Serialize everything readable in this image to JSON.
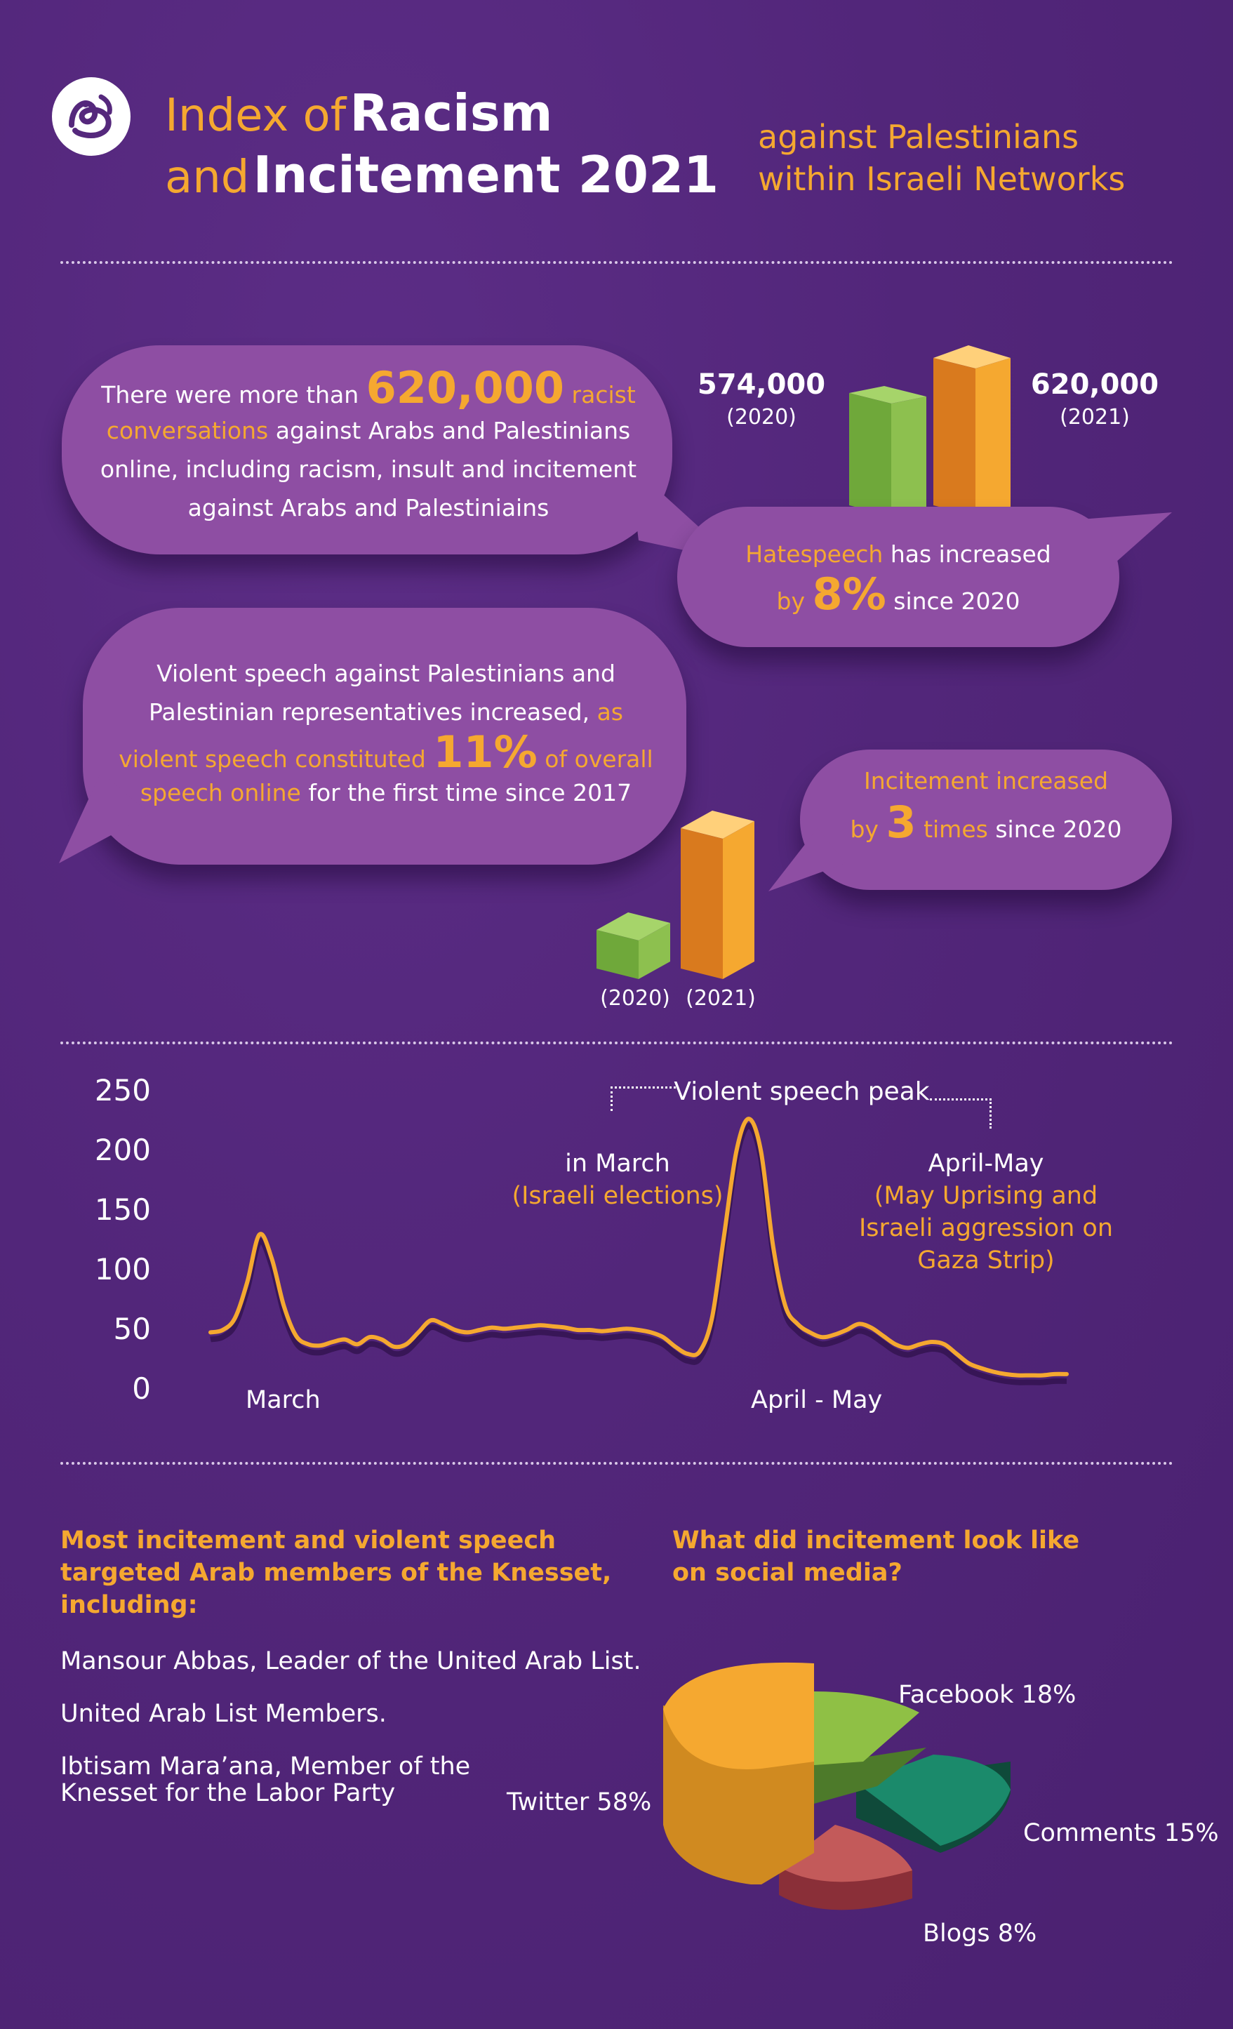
{
  "header": {
    "title_line1_a": "Index of",
    "title_line1_b": "Racism",
    "title_line2_a": "and",
    "title_line2_b": "Incitement 2021",
    "subtitle_line1": "against Palestinians",
    "subtitle_line2": "within Israeli Networks"
  },
  "bubble1": {
    "t1": "There were more than",
    "num": "620,000",
    "t2": "racist",
    "t3": "conversations",
    "t4": "against Arabs and Palestinians",
    "t5": "online, including racism, insult and incitement",
    "t6": "against Arabs and Palestiniains"
  },
  "hatespeech_chart": {
    "left_value": "574,000",
    "left_year": "(2020)",
    "right_value": "620,000",
    "right_year": "(2021)"
  },
  "bubble2": {
    "t1": "Hatespeech",
    "t2": "has increased",
    "t3": "by",
    "num": "8%",
    "t4": "since 2020"
  },
  "bubble3": {
    "t1": "Violent speech against Palestinians and",
    "t2": "Palestinian representatives increased,",
    "t3": "as",
    "t4": "violent speech constituted",
    "num": "11%",
    "t5": "of overall",
    "t6": "speech online",
    "t7": "for the first time since 2017"
  },
  "bubble4": {
    "t1": "Incitement increased",
    "t2": "by",
    "num": "3",
    "t3": "times",
    "t4": "since 2020"
  },
  "incitement_chart": {
    "left_year": "(2020)",
    "right_year": "(2021)"
  },
  "chart_data": {
    "type": "line",
    "y_ticks": [
      "250",
      "200",
      "150",
      "100",
      "50",
      "0"
    ],
    "ylim": [
      0,
      250
    ],
    "x_labels": [
      "March",
      "April - May"
    ],
    "x": [
      0,
      1,
      2,
      3,
      4,
      5,
      6,
      7,
      8,
      9,
      10,
      11,
      12,
      13,
      14,
      15,
      16,
      17,
      18,
      19,
      20,
      21,
      22,
      23,
      24,
      25,
      26,
      27,
      28,
      29,
      30,
      31,
      32,
      33,
      34,
      35,
      36,
      37,
      38,
      39,
      40,
      41,
      42,
      43,
      44,
      45,
      46,
      47,
      48,
      49,
      50,
      51,
      52,
      53,
      54,
      55,
      56,
      57,
      58,
      59,
      60,
      61,
      62,
      63,
      64,
      65,
      66,
      67,
      68,
      69,
      70
    ],
    "values": [
      48,
      50,
      60,
      90,
      130,
      110,
      70,
      45,
      38,
      37,
      40,
      42,
      38,
      44,
      42,
      36,
      38,
      48,
      58,
      55,
      50,
      48,
      50,
      52,
      51,
      52,
      53,
      54,
      53,
      52,
      50,
      50,
      49,
      50,
      51,
      50,
      48,
      44,
      36,
      30,
      32,
      60,
      130,
      200,
      227,
      200,
      120,
      70,
      55,
      48,
      44,
      46,
      50,
      55,
      52,
      45,
      38,
      35,
      38,
      40,
      38,
      30,
      22,
      18,
      15,
      13,
      12,
      12,
      12,
      13,
      13
    ],
    "annotations": {
      "peak_title": "Violent speech peak",
      "left_line1": "in March",
      "left_line2": "(Israeli elections)",
      "right_line1": "April-May",
      "right_line2": "(May Uprising and",
      "right_line3": "Israeli aggression on",
      "right_line4": "Gaza Strip)"
    }
  },
  "knesset": {
    "heading_line1": "Most incitement and violent speech",
    "heading_line2": "targeted Arab members of the Knesset,",
    "heading_line3": "including:",
    "item1": "Mansour Abbas, Leader of the United Arab List.",
    "item2": "United Arab List Members.",
    "item3_line1": "Ibtisam Mara’ana, Member of the",
    "item3_line2": "Knesset for the Labor Party"
  },
  "social": {
    "heading_line1": "What did incitement look like",
    "heading_line2": "on social media?"
  },
  "pie_chart": {
    "type": "pie",
    "slices": [
      {
        "label": "Twitter 58%",
        "value": 58,
        "color": "#f5a830"
      },
      {
        "label": "Facebook 18%",
        "value": 18,
        "color": "#8fc045"
      },
      {
        "label": "Comments 15%",
        "value": 15,
        "color": "#1b8a6b"
      },
      {
        "label": "Blogs 8%",
        "value": 8,
        "color": "#c35a5a"
      }
    ]
  },
  "colors": {
    "background": "#55287c",
    "bubble": "#8e4ea3",
    "accent_orange": "#f5a830",
    "bar_green": "#7ab648",
    "bar_orange": "#f0a030"
  },
  "icons": {
    "logo": "stylized-calligraphy-logo"
  }
}
